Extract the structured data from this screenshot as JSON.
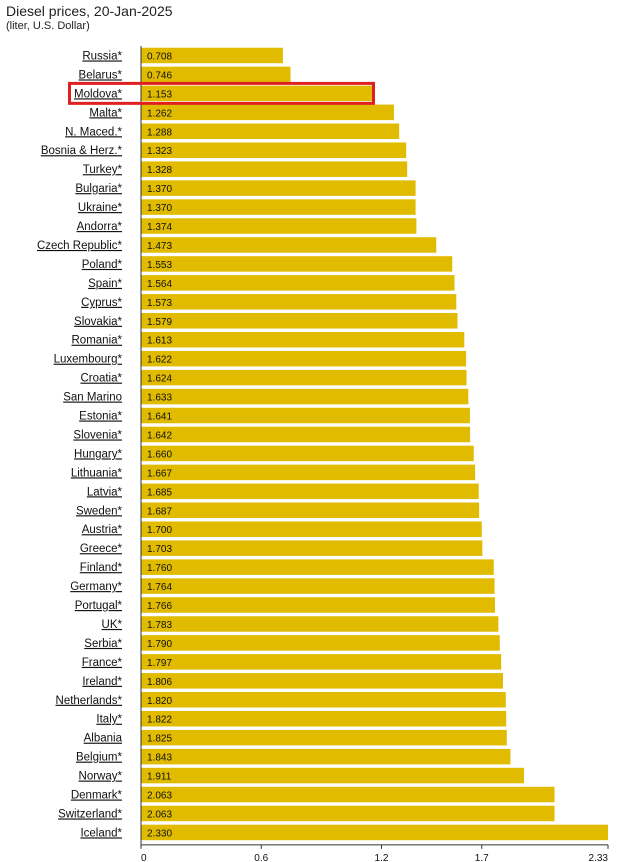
{
  "title": "Diesel prices, 20-Jan-2025",
  "subtitle": "(liter, U.S. Dollar)",
  "colors": {
    "bar": "#e0bb00",
    "highlight": "#e02020",
    "axis": "#333333"
  },
  "chart_data": {
    "type": "bar",
    "orientation": "horizontal",
    "highlight": "Moldova*",
    "xlim": [
      0,
      2.33
    ],
    "xticks": [
      "0",
      "0.6",
      "1.2",
      "1.7",
      "2.33"
    ],
    "categories": [
      "Russia*",
      "Belarus*",
      "Moldova*",
      "Malta*",
      "N. Maced.*",
      "Bosnia & Herz.*",
      "Turkey*",
      "Bulgaria*",
      "Ukraine*",
      "Andorra*",
      "Czech Republic*",
      "Poland*",
      "Spain*",
      "Cyprus*",
      "Slovakia*",
      "Romania*",
      "Luxembourg*",
      "Croatia*",
      "San Marino",
      "Estonia*",
      "Slovenia*",
      "Hungary*",
      "Lithuania*",
      "Latvia*",
      "Sweden*",
      "Austria*",
      "Greece*",
      "Finland*",
      "Germany*",
      "Portugal*",
      "UK*",
      "Serbia*",
      "France*",
      "Ireland*",
      "Netherlands*",
      "Italy*",
      "Albania",
      "Belgium*",
      "Norway*",
      "Denmark*",
      "Switzerland*",
      "Iceland*"
    ],
    "value_labels": [
      "0.708",
      "0.746",
      "1.153",
      "1.262",
      "1.288",
      "1.323",
      "1.328",
      "1.370",
      "1.370",
      "1.374",
      "1.473",
      "1.553",
      "1.564",
      "1.573",
      "1.579",
      "1.613",
      "1.622",
      "1.624",
      "1.633",
      "1.641",
      "1.642",
      "1.660",
      "1.667",
      "1.685",
      "1.687",
      "1.700",
      "1.703",
      "1.760",
      "1.764",
      "1.766",
      "1.783",
      "1.790",
      "1.797",
      "1.806",
      "1.820",
      "1.822",
      "1.825",
      "1.843",
      "1.911",
      "2.063",
      "2.063",
      "2.330"
    ],
    "values": [
      0.708,
      0.746,
      1.153,
      1.262,
      1.288,
      1.323,
      1.328,
      1.37,
      1.37,
      1.374,
      1.473,
      1.553,
      1.564,
      1.573,
      1.579,
      1.613,
      1.622,
      1.624,
      1.633,
      1.641,
      1.642,
      1.66,
      1.667,
      1.685,
      1.687,
      1.7,
      1.703,
      1.76,
      1.764,
      1.766,
      1.783,
      1.79,
      1.797,
      1.806,
      1.82,
      1.822,
      1.825,
      1.843,
      1.911,
      2.063,
      2.063,
      2.33
    ]
  }
}
